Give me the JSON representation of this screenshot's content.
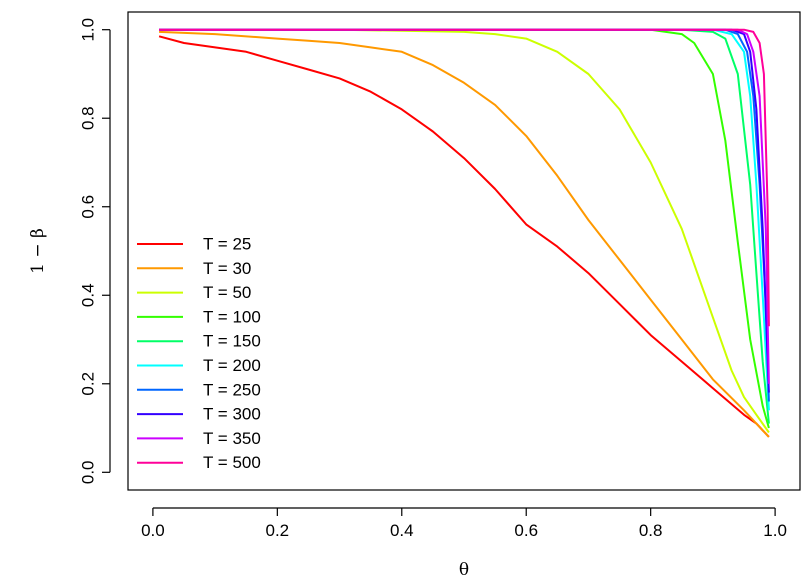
{
  "chart_data": {
    "type": "line",
    "xlabel": "θ",
    "ylabel": "1 − β",
    "xlim": [
      0.0,
      1.0
    ],
    "ylim": [
      0.0,
      1.0
    ],
    "xticks": [
      "0.0",
      "0.2",
      "0.4",
      "0.6",
      "0.8",
      "1.0"
    ],
    "yticks": [
      "0.0",
      "0.2",
      "0.4",
      "0.6",
      "0.8",
      "1.0"
    ],
    "grid": false,
    "legend_position": "bottom-left",
    "series": [
      {
        "name": "T = 25",
        "color": "#ff0000",
        "x": [
          0.01,
          0.05,
          0.1,
          0.15,
          0.2,
          0.25,
          0.3,
          0.35,
          0.4,
          0.45,
          0.5,
          0.55,
          0.6,
          0.65,
          0.7,
          0.75,
          0.8,
          0.85,
          0.9,
          0.95,
          0.97,
          0.99
        ],
        "y": [
          0.985,
          0.97,
          0.96,
          0.95,
          0.93,
          0.91,
          0.89,
          0.86,
          0.82,
          0.77,
          0.71,
          0.64,
          0.56,
          0.51,
          0.45,
          0.38,
          0.31,
          0.25,
          0.19,
          0.13,
          0.11,
          0.08
        ]
      },
      {
        "name": "T = 30",
        "color": "#ff9900",
        "x": [
          0.01,
          0.1,
          0.2,
          0.25,
          0.3,
          0.35,
          0.4,
          0.45,
          0.5,
          0.55,
          0.6,
          0.65,
          0.7,
          0.75,
          0.8,
          0.85,
          0.9,
          0.95,
          0.97,
          0.99
        ],
        "y": [
          0.995,
          0.99,
          0.98,
          0.975,
          0.97,
          0.96,
          0.95,
          0.92,
          0.88,
          0.83,
          0.76,
          0.67,
          0.57,
          0.48,
          0.39,
          0.3,
          0.21,
          0.14,
          0.11,
          0.08
        ]
      },
      {
        "name": "T = 50",
        "color": "#ccff00",
        "x": [
          0.01,
          0.3,
          0.5,
          0.55,
          0.6,
          0.65,
          0.7,
          0.75,
          0.8,
          0.85,
          0.9,
          0.93,
          0.95,
          0.97,
          0.99
        ],
        "y": [
          1.0,
          1.0,
          0.995,
          0.99,
          0.98,
          0.95,
          0.9,
          0.82,
          0.7,
          0.55,
          0.35,
          0.23,
          0.17,
          0.13,
          0.09
        ]
      },
      {
        "name": "T = 100",
        "color": "#33ff00",
        "x": [
          0.01,
          0.8,
          0.85,
          0.87,
          0.9,
          0.92,
          0.94,
          0.96,
          0.98,
          0.99
        ],
        "y": [
          1.0,
          1.0,
          0.99,
          0.97,
          0.9,
          0.75,
          0.52,
          0.3,
          0.15,
          0.1
        ]
      },
      {
        "name": "T = 150",
        "color": "#00ff66",
        "x": [
          0.01,
          0.85,
          0.9,
          0.92,
          0.94,
          0.96,
          0.97,
          0.98,
          0.99
        ],
        "y": [
          1.0,
          1.0,
          0.995,
          0.98,
          0.9,
          0.65,
          0.45,
          0.25,
          0.11
        ]
      },
      {
        "name": "T = 200",
        "color": "#00ffff",
        "x": [
          0.01,
          0.9,
          0.93,
          0.95,
          0.96,
          0.97,
          0.98,
          0.99
        ],
        "y": [
          1.0,
          1.0,
          0.99,
          0.95,
          0.85,
          0.65,
          0.4,
          0.14
        ]
      },
      {
        "name": "T = 250",
        "color": "#0066ff",
        "x": [
          0.01,
          0.92,
          0.94,
          0.955,
          0.965,
          0.975,
          0.985,
          0.99
        ],
        "y": [
          1.0,
          1.0,
          0.99,
          0.95,
          0.85,
          0.65,
          0.38,
          0.16
        ]
      },
      {
        "name": "T = 300",
        "color": "#3300ff",
        "x": [
          0.01,
          0.93,
          0.95,
          0.96,
          0.97,
          0.98,
          0.99
        ],
        "y": [
          1.0,
          1.0,
          0.99,
          0.95,
          0.82,
          0.55,
          0.18
        ]
      },
      {
        "name": "T = 350",
        "color": "#cc00ff",
        "x": [
          0.01,
          0.94,
          0.955,
          0.965,
          0.975,
          0.985,
          0.99
        ],
        "y": [
          1.0,
          1.0,
          0.99,
          0.95,
          0.85,
          0.55,
          0.2
        ]
      },
      {
        "name": "T = 500",
        "color": "#ff0099",
        "x": [
          0.01,
          0.95,
          0.965,
          0.975,
          0.982,
          0.988,
          0.99
        ],
        "y": [
          1.0,
          1.0,
          0.995,
          0.97,
          0.9,
          0.6,
          0.33
        ]
      }
    ]
  }
}
